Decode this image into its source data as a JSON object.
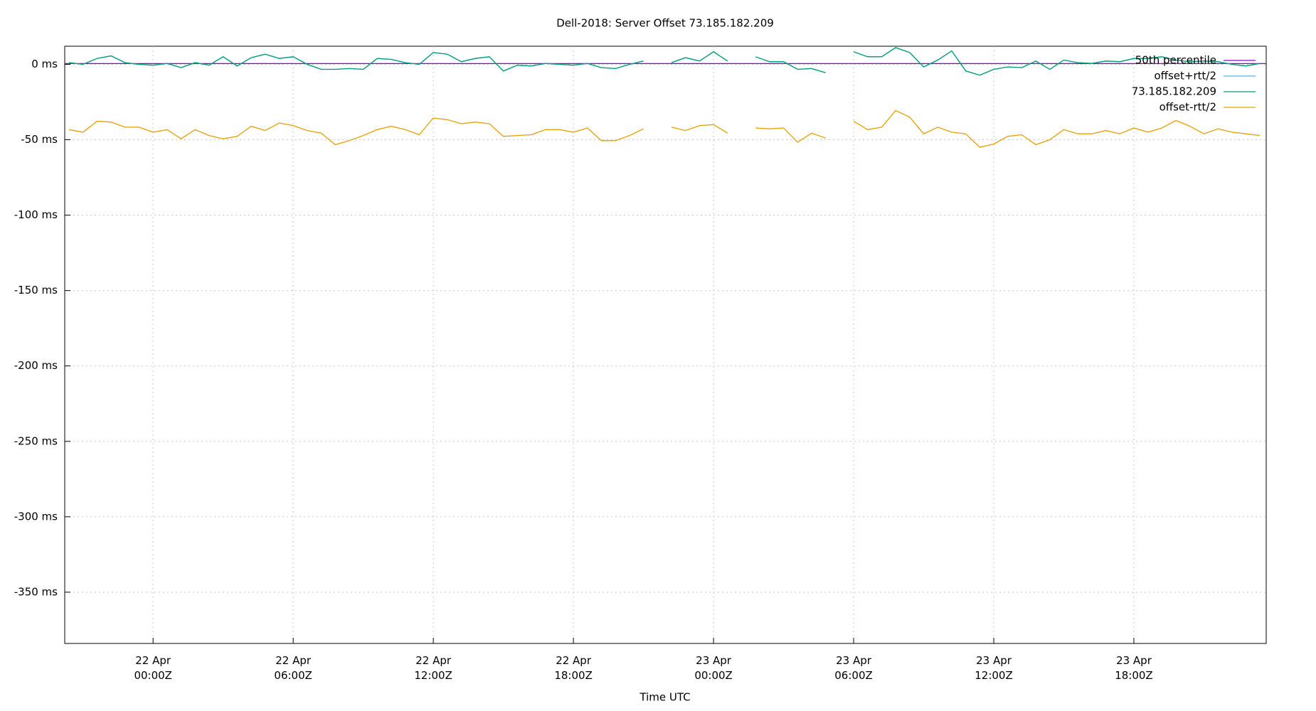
{
  "chart_data": {
    "type": "line",
    "title": "Dell-2018: Server Offset 73.185.182.209",
    "x_label": "Time UTC",
    "xlim": [
      "21 Apr 20:13Z",
      "23 Apr 23:40Z"
    ],
    "xticks": [
      {
        "value": "22 Apr 00:00Z",
        "label": [
          "22 Apr",
          "00:00Z"
        ]
      },
      {
        "value": "22 Apr 06:00Z",
        "label": [
          "22 Apr",
          "06:00Z"
        ]
      },
      {
        "value": "22 Apr 12:00Z",
        "label": [
          "22 Apr",
          "12:00Z"
        ]
      },
      {
        "value": "22 Apr 18:00Z",
        "label": [
          "22 Apr",
          "18:00Z"
        ]
      },
      {
        "value": "23 Apr 00:00Z",
        "label": [
          "23 Apr",
          "00:00Z"
        ]
      },
      {
        "value": "23 Apr 06:00Z",
        "label": [
          "23 Apr",
          "06:00Z"
        ]
      },
      {
        "value": "23 Apr 12:00Z",
        "label": [
          "23 Apr",
          "12:00Z"
        ]
      },
      {
        "value": "23 Apr 18:00Z",
        "label": [
          "23 Apr",
          "18:00Z"
        ]
      }
    ],
    "ylim": [
      -384,
      12
    ],
    "yticks": [
      {
        "value": 0,
        "label": "0 ms"
      },
      {
        "value": -50,
        "label": "-50 ms"
      },
      {
        "value": -100,
        "label": "-100 ms"
      },
      {
        "value": -150,
        "label": "-150 ms"
      },
      {
        "value": -200,
        "label": "-200 ms"
      },
      {
        "value": -250,
        "label": "-250 ms"
      },
      {
        "value": -300,
        "label": "-300 ms"
      },
      {
        "value": -350,
        "label": "-350 ms"
      }
    ],
    "grid": true,
    "legend": "top-right",
    "x": [
      "21 Apr 20:24Z",
      "21 Apr 21:00Z",
      "21 Apr 21:36Z",
      "21 Apr 22:12Z",
      "21 Apr 22:48Z",
      "21 Apr 23:24Z",
      "22 Apr 00:00Z",
      "22 Apr 00:36Z",
      "22 Apr 01:12Z",
      "22 Apr 01:48Z",
      "22 Apr 02:24Z",
      "22 Apr 03:00Z",
      "22 Apr 03:36Z",
      "22 Apr 04:12Z",
      "22 Apr 04:48Z",
      "22 Apr 05:24Z",
      "22 Apr 06:00Z",
      "22 Apr 06:36Z",
      "22 Apr 07:12Z",
      "22 Apr 07:48Z",
      "22 Apr 08:24Z",
      "22 Apr 09:00Z",
      "22 Apr 09:36Z",
      "22 Apr 10:12Z",
      "22 Apr 10:48Z",
      "22 Apr 11:24Z",
      "22 Apr 12:00Z",
      "22 Apr 12:36Z",
      "22 Apr 13:12Z",
      "22 Apr 13:48Z",
      "22 Apr 14:24Z",
      "22 Apr 15:00Z",
      "22 Apr 15:36Z",
      "22 Apr 16:12Z",
      "22 Apr 16:48Z",
      "22 Apr 17:24Z",
      "22 Apr 18:00Z",
      "22 Apr 18:36Z",
      "22 Apr 19:12Z",
      "22 Apr 19:48Z",
      "22 Apr 20:24Z",
      "22 Apr 21:00Z",
      "22 Apr 21:36Z",
      "22 Apr 22:12Z",
      "22 Apr 22:48Z",
      "22 Apr 23:24Z",
      "23 Apr 00:00Z",
      "23 Apr 00:36Z",
      "23 Apr 01:12Z",
      "23 Apr 01:48Z",
      "23 Apr 02:24Z",
      "23 Apr 03:00Z",
      "23 Apr 03:36Z",
      "23 Apr 04:12Z",
      "23 Apr 04:48Z",
      "23 Apr 05:24Z",
      "23 Apr 06:00Z",
      "23 Apr 06:36Z",
      "23 Apr 07:12Z",
      "23 Apr 07:48Z",
      "23 Apr 08:24Z",
      "23 Apr 09:00Z",
      "23 Apr 09:36Z",
      "23 Apr 10:12Z",
      "23 Apr 10:48Z",
      "23 Apr 11:24Z",
      "23 Apr 12:00Z",
      "23 Apr 12:36Z",
      "23 Apr 13:12Z",
      "23 Apr 13:48Z",
      "23 Apr 14:24Z",
      "23 Apr 15:00Z",
      "23 Apr 15:36Z",
      "23 Apr 16:12Z",
      "23 Apr 16:48Z",
      "23 Apr 17:24Z",
      "23 Apr 18:00Z",
      "23 Apr 18:36Z",
      "23 Apr 19:12Z",
      "23 Apr 19:48Z",
      "23 Apr 20:24Z",
      "23 Apr 21:00Z",
      "23 Apr 21:36Z",
      "23 Apr 22:12Z",
      "23 Apr 22:48Z",
      "23 Apr 23:24Z"
    ],
    "series": [
      {
        "name": "50th percentile",
        "color": "#9400d3",
        "x": [
          "21 Apr 20:13Z",
          "23 Apr 23:40Z"
        ],
        "values": [
          0.5,
          0.5
        ]
      },
      {
        "name": "offset+rtt/2",
        "color": "#56b4e9",
        "values": [
          1.1,
          0,
          3.9,
          5.6,
          1.1,
          0,
          -0.6,
          0.6,
          -2.2,
          1.1,
          -0.6,
          5,
          -1.1,
          4.4,
          6.7,
          3.9,
          5,
          0,
          -3.3,
          -3.3,
          -2.8,
          -3.3,
          3.9,
          3.3,
          1.1,
          0,
          7.8,
          6.7,
          1.7,
          3.9,
          5,
          -4.4,
          -0.6,
          -1.1,
          0.6,
          0,
          -0.6,
          0.6,
          -2.2,
          -2.8,
          0,
          2.2,
          null,
          1.1,
          4.4,
          2.2,
          8.3,
          2.2,
          null,
          5,
          1.7,
          1.7,
          -3.3,
          -2.8,
          -5.6,
          null,
          8.3,
          5,
          5,
          11.1,
          7.8,
          -1.7,
          2.8,
          8.9,
          -4.4,
          -7.2,
          -3.3,
          -1.7,
          -2.2,
          2.2,
          -3.3,
          2.8,
          1.1,
          0.6,
          2.2,
          1.7,
          3.9,
          3.9,
          5,
          2.8,
          1.7,
          2.2,
          1.7,
          0,
          -1.1,
          0.6
        ]
      },
      {
        "name": "73.185.182.209",
        "color": "#009e73",
        "values": [
          1.1,
          0,
          3.9,
          5.6,
          1.1,
          0,
          -0.6,
          0.6,
          -2.2,
          1.1,
          -0.6,
          5,
          -1.1,
          4.4,
          6.7,
          3.9,
          5,
          0,
          -3.3,
          -3.3,
          -2.8,
          -3.3,
          3.9,
          3.3,
          1.1,
          0,
          7.8,
          6.7,
          1.7,
          3.9,
          5,
          -4.4,
          -0.6,
          -1.1,
          0.6,
          0,
          -0.6,
          0.6,
          -2.2,
          -2.8,
          0,
          2.2,
          null,
          1.1,
          4.4,
          2.2,
          8.3,
          2.2,
          null,
          5,
          1.7,
          1.7,
          -3.3,
          -2.8,
          -5.6,
          null,
          8.3,
          5,
          5,
          11.1,
          7.8,
          -1.7,
          2.8,
          8.9,
          -4.4,
          -7.2,
          -3.3,
          -1.7,
          -2.2,
          2.2,
          -3.3,
          2.8,
          1.1,
          0.6,
          2.2,
          1.7,
          3.9,
          3.9,
          5,
          2.8,
          1.7,
          2.2,
          1.7,
          0,
          -1.1,
          0.6
        ]
      },
      {
        "name": "offset-rtt/2",
        "color": "#e69f00",
        "values": [
          -43.3,
          -45,
          -37.8,
          -38.3,
          -41.7,
          -41.7,
          -45,
          -43.3,
          -49.4,
          -43.3,
          -47.2,
          -49.4,
          -47.8,
          -41.1,
          -43.9,
          -38.9,
          -40.6,
          -43.9,
          -45.6,
          -53.3,
          -50.6,
          -47.2,
          -43.3,
          -41.1,
          -43.3,
          -46.7,
          -35.6,
          -36.7,
          -39.4,
          -38.3,
          -39.4,
          -47.8,
          -47.2,
          -46.7,
          -43.3,
          -43.3,
          -45,
          -42.2,
          -50.6,
          -50.6,
          -47.2,
          -42.8,
          null,
          -41.7,
          -43.9,
          -40.6,
          -40,
          -45.6,
          null,
          -42.2,
          -42.8,
          -42.2,
          -51.7,
          -45.6,
          -48.9,
          null,
          -37.8,
          -43.3,
          -41.7,
          -30.6,
          -35,
          -46.1,
          -41.7,
          -45,
          -46.1,
          -55,
          -52.8,
          -47.8,
          -46.7,
          -53.3,
          -50,
          -43.3,
          -46.1,
          -46.1,
          -43.9,
          -46.1,
          -42.2,
          -45,
          -42.2,
          -37.2,
          -41.1,
          -46.1,
          -42.8,
          -45,
          -46.1,
          -47.2
        ]
      }
    ]
  }
}
